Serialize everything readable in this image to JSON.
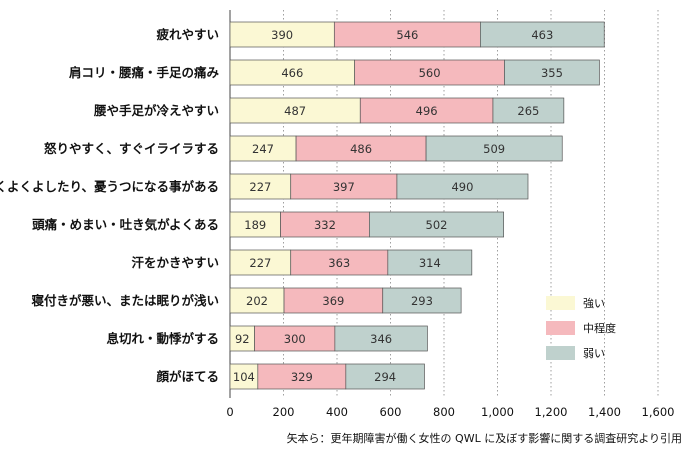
{
  "chart_data": {
    "type": "bar",
    "orientation": "horizontal",
    "stacked": true,
    "categories": [
      "疲れやすい",
      "肩コリ・腰痛・手足の痛み",
      "腰や手足が冷えやすい",
      "怒りやすく、すぐイライラする",
      "くよくよしたり、憂うつになる事がある",
      "頭痛・めまい・吐き気がよくある",
      "汗をかきやすい",
      "寝付きが悪い、または眠りが浅い",
      "息切れ・動悸がする",
      "顔がほてる"
    ],
    "series": [
      {
        "name": "強い",
        "color": "#fbf8d4",
        "values": [
          390,
          466,
          487,
          247,
          227,
          189,
          227,
          202,
          92,
          104
        ]
      },
      {
        "name": "中程度",
        "color": "#f5b9bd",
        "values": [
          546,
          560,
          496,
          486,
          397,
          332,
          363,
          369,
          300,
          329
        ]
      },
      {
        "name": "弱い",
        "color": "#bfd1cd",
        "values": [
          463,
          355,
          265,
          509,
          490,
          502,
          314,
          293,
          346,
          294
        ]
      }
    ],
    "xlim": [
      0,
      1600
    ],
    "xticks": [
      "0",
      "200",
      "400",
      "600",
      "800",
      "1,000",
      "1,200",
      "1,400",
      "1,600"
    ],
    "xtick_values": [
      0,
      200,
      400,
      600,
      800,
      1000,
      1200,
      1400,
      1600
    ],
    "grid": true,
    "legend_position": "right"
  },
  "source_note": "矢本ら：更年期障害が働く女性の QWL に及ぼす影響に関する調査研究より引用"
}
